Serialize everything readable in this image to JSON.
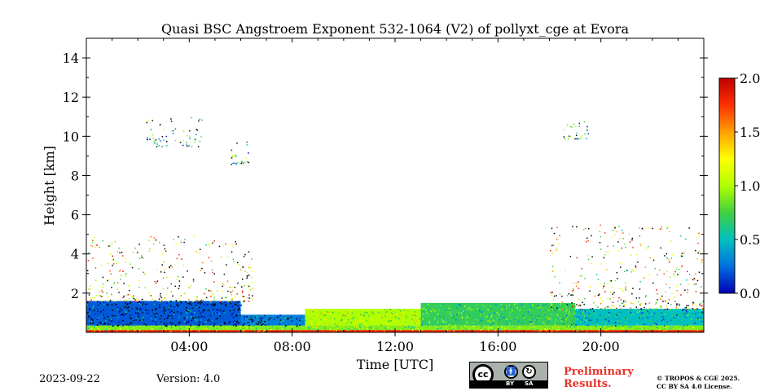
{
  "chart_data": {
    "type": "heatmap",
    "title": "Quasi BSC Angstroem Exponent 532-1064 (V2) of pollyxt_cge at Evora",
    "xlabel": "Time [UTC]",
    "ylabel": "Height [km]",
    "x_range_hours": [
      0,
      24
    ],
    "y_range_km": [
      0,
      15
    ],
    "x_ticks": [
      {
        "hour": 4,
        "label": "04:00"
      },
      {
        "hour": 8,
        "label": "08:00"
      },
      {
        "hour": 12,
        "label": "12:00"
      },
      {
        "hour": 16,
        "label": "16:00"
      },
      {
        "hour": 20,
        "label": "20:00"
      }
    ],
    "y_ticks": [
      {
        "km": 2,
        "label": "2"
      },
      {
        "km": 4,
        "label": "4"
      },
      {
        "km": 6,
        "label": "6"
      },
      {
        "km": 8,
        "label": "8"
      },
      {
        "km": 10,
        "label": "10"
      },
      {
        "km": 12,
        "label": "12"
      },
      {
        "km": 14,
        "label": "14"
      }
    ],
    "colorbar": {
      "range": [
        0,
        2
      ],
      "ticks": [
        {
          "value": 0.0,
          "label": "0.0"
        },
        {
          "value": 0.5,
          "label": "0.5"
        },
        {
          "value": 1.0,
          "label": "1.0"
        },
        {
          "value": 1.5,
          "label": "1.5"
        },
        {
          "value": 2.0,
          "label": "2.0"
        }
      ],
      "colors": [
        "#0000b4",
        "#0070e0",
        "#00c0c0",
        "#40d040",
        "#b0ff00",
        "#ffff00",
        "#ffa000",
        "#ff3000",
        "#c00000"
      ]
    },
    "layers": [
      {
        "name": "surface-layer",
        "hour_start": 0,
        "hour_end": 24,
        "km_bottom": 0.0,
        "km_top": 0.12,
        "value": 1.8
      },
      {
        "name": "near-surface-band",
        "hour_start": 0,
        "hour_end": 24,
        "km_bottom": 0.12,
        "km_top": 0.35,
        "value": 0.9
      },
      {
        "name": "night-boundary-layer-early",
        "hour_start": 0,
        "hour_end": 6,
        "km_bottom": 0.35,
        "km_top": 1.6,
        "value": 0.2
      },
      {
        "name": "night-boundary-layer-late",
        "hour_start": 6,
        "hour_end": 8.5,
        "km_bottom": 0.35,
        "km_top": 0.9,
        "value": 0.3
      },
      {
        "name": "daytime-boundary-layer-morning",
        "hour_start": 8.5,
        "hour_end": 13,
        "km_bottom": 0.35,
        "km_top": 1.2,
        "value": 1.0
      },
      {
        "name": "daytime-boundary-layer-afternoon",
        "hour_start": 13,
        "hour_end": 19,
        "km_bottom": 0.35,
        "km_top": 1.5,
        "value": 0.7
      },
      {
        "name": "evening-boundary-layer",
        "hour_start": 19,
        "hour_end": 24,
        "km_bottom": 0.35,
        "km_top": 1.2,
        "value": 0.5
      }
    ],
    "scatter_regions": [
      {
        "name": "early-aloft-aerosol",
        "hour_start": 0,
        "hour_end": 6.5,
        "km_bottom": 1.6,
        "km_top": 5.0,
        "value_range": [
          0.6,
          2.0
        ]
      },
      {
        "name": "evening-aloft-aerosol",
        "hour_start": 18,
        "hour_end": 24,
        "km_bottom": 1.2,
        "km_top": 5.5,
        "value_range": [
          0.4,
          2.0
        ]
      },
      {
        "name": "cirrus-patch-night",
        "hour_start": 2.3,
        "hour_end": 4.5,
        "km_bottom": 9.5,
        "km_top": 11.0,
        "value_range": [
          0.0,
          1.2
        ]
      },
      {
        "name": "cirrus-patch-6h",
        "hour_start": 5.6,
        "hour_end": 6.3,
        "km_bottom": 8.6,
        "km_top": 9.8,
        "value_range": [
          0.0,
          1.2
        ]
      },
      {
        "name": "cirrus-patch-evening",
        "hour_start": 18.5,
        "hour_end": 19.5,
        "km_bottom": 9.9,
        "km_top": 10.8,
        "value_range": [
          0.0,
          1.2
        ]
      }
    ]
  },
  "footer": {
    "date": "2023-09-22",
    "version": "Version: 4.0",
    "badge_by": "BY",
    "badge_sa": "SA",
    "badge_cc": "cc",
    "preliminary": "Preliminary Results.",
    "copyright_line1": "© TROPOS & CGE 2025.",
    "copyright_line2": "CC BY SA 4.0 License."
  }
}
